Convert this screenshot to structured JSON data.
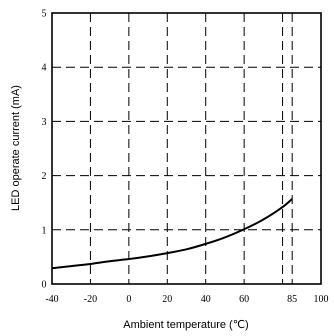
{
  "chart_data": {
    "type": "line",
    "xlabel": "Ambient temperature (℃)",
    "ylabel": "LED operate current (mA)",
    "xlim": [
      -40,
      100
    ],
    "ylim": [
      0,
      5
    ],
    "x_ticks": [
      -40,
      -20,
      0,
      20,
      40,
      60,
      85,
      100
    ],
    "y_ticks": [
      0,
      1,
      2,
      3,
      4,
      5
    ],
    "x_gridlines": [
      -20,
      0,
      20,
      40,
      60,
      80,
      85
    ],
    "y_gridlines": [
      1,
      2,
      3,
      4
    ],
    "grid": true,
    "series": [
      {
        "x": [
          -40,
          -30,
          -20,
          -10,
          0,
          10,
          20,
          30,
          40,
          50,
          60,
          70,
          80,
          85
        ],
        "y": [
          0.29,
          0.33,
          0.37,
          0.42,
          0.46,
          0.51,
          0.57,
          0.64,
          0.74,
          0.86,
          1.01,
          1.19,
          1.42,
          1.57
        ]
      }
    ]
  }
}
